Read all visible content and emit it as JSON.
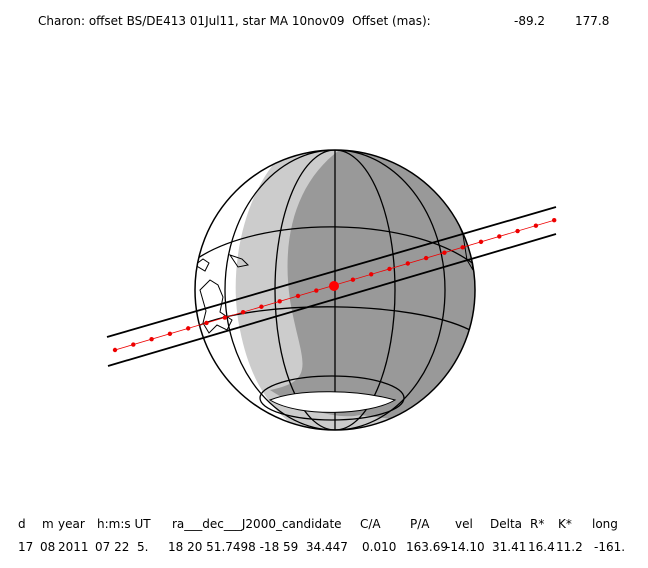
{
  "header": {
    "title": "Charon: offset BS/DE413 01Jul11, star MA 10nov09  Offset (mas):",
    "offset": [
      "-89.2",
      "177.8"
    ]
  },
  "table": {
    "columns": [
      "d",
      "m",
      "year",
      "h:m:s UT",
      "ra___dec___J2000_candidate",
      "C/A",
      "P/A",
      "vel",
      "Delta",
      "R*",
      "K*",
      "long"
    ],
    "row": [
      "17",
      "08",
      "2011",
      "07 22  5.",
      "18 20 51.7498 -18 59  34.447",
      "0.010",
      "163.69",
      "-14.10",
      "31.41",
      "16.4",
      "11.2",
      "-161."
    ]
  }
}
